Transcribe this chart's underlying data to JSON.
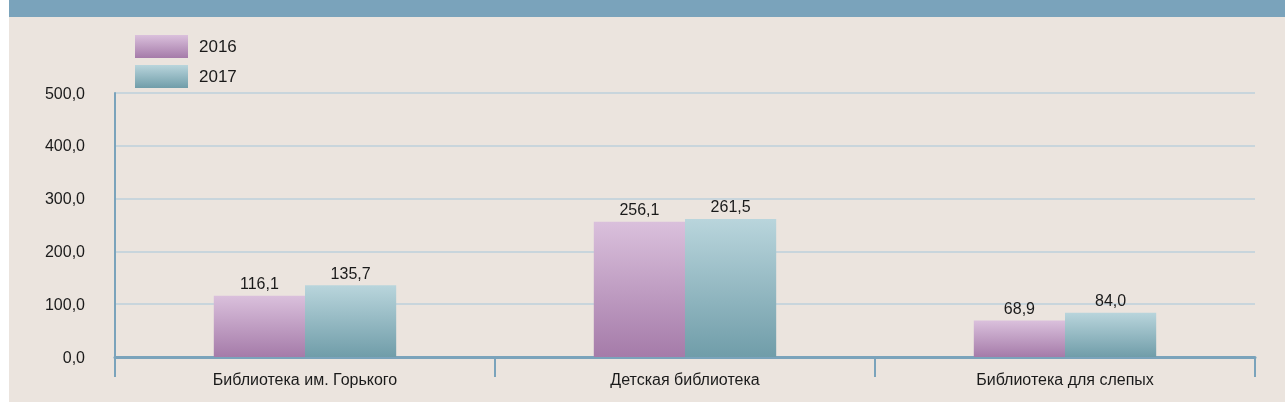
{
  "chart_data": {
    "type": "bar",
    "categories": [
      "Библиотека им. Горького",
      "Детская библиотека",
      "Библиотека для слепых"
    ],
    "series": [
      {
        "name": "2016",
        "color": "#bb8cc0",
        "values": [
          116.1,
          256.1,
          68.9
        ],
        "value_labels": [
          "116,1",
          "256,1",
          "68,9"
        ]
      },
      {
        "name": "2017",
        "color": "#7fb2c0",
        "values": [
          135.7,
          261.5,
          84.0
        ],
        "value_labels": [
          "135,7",
          "261,5",
          "84,0"
        ]
      }
    ],
    "ylim": [
      0,
      500
    ],
    "yticks": [
      {
        "value": 0,
        "label": "0,0"
      },
      {
        "value": 100,
        "label": "100,0"
      },
      {
        "value": 200,
        "label": "200,0"
      },
      {
        "value": 300,
        "label": "300,0"
      },
      {
        "value": 400,
        "label": "400,0"
      },
      {
        "value": 500,
        "label": "500,0"
      }
    ],
    "grid": "y",
    "legend": "top left"
  }
}
